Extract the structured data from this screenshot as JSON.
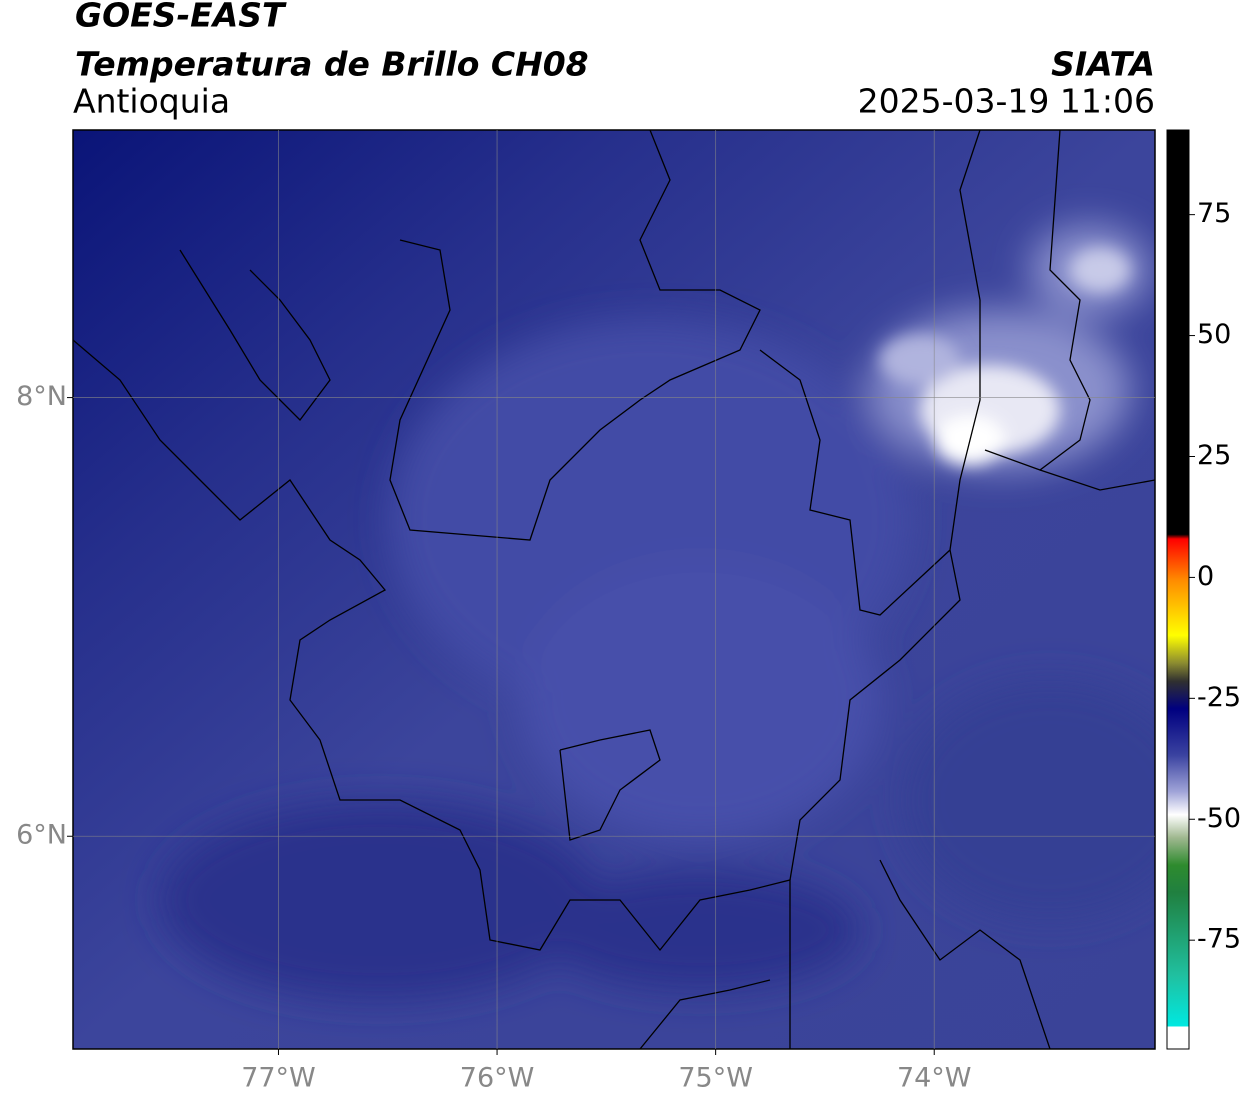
{
  "header": {
    "product": "GOES-EAST",
    "title": "Temperatura de Brillo CH08",
    "region": "Antioquia",
    "source": "SIATA",
    "datetime": "2025-03-19 11:06"
  },
  "map": {
    "xlim": [
      -77.94,
      -72.99
    ],
    "ylim": [
      5.03,
      9.22
    ],
    "xticks": [
      {
        "value": -77,
        "label": "77°W"
      },
      {
        "value": -76,
        "label": "76°W"
      },
      {
        "value": -75,
        "label": "75°W"
      },
      {
        "value": -74,
        "label": "74°W"
      }
    ],
    "yticks": [
      {
        "value": 8,
        "label": "8°N"
      },
      {
        "value": 6,
        "label": "6°N"
      }
    ],
    "grid": true
  },
  "colorbar": {
    "lim": [
      -97.5,
      92.5
    ],
    "ticks": [
      75,
      50,
      25,
      0,
      -25,
      -50,
      -75
    ]
  }
}
